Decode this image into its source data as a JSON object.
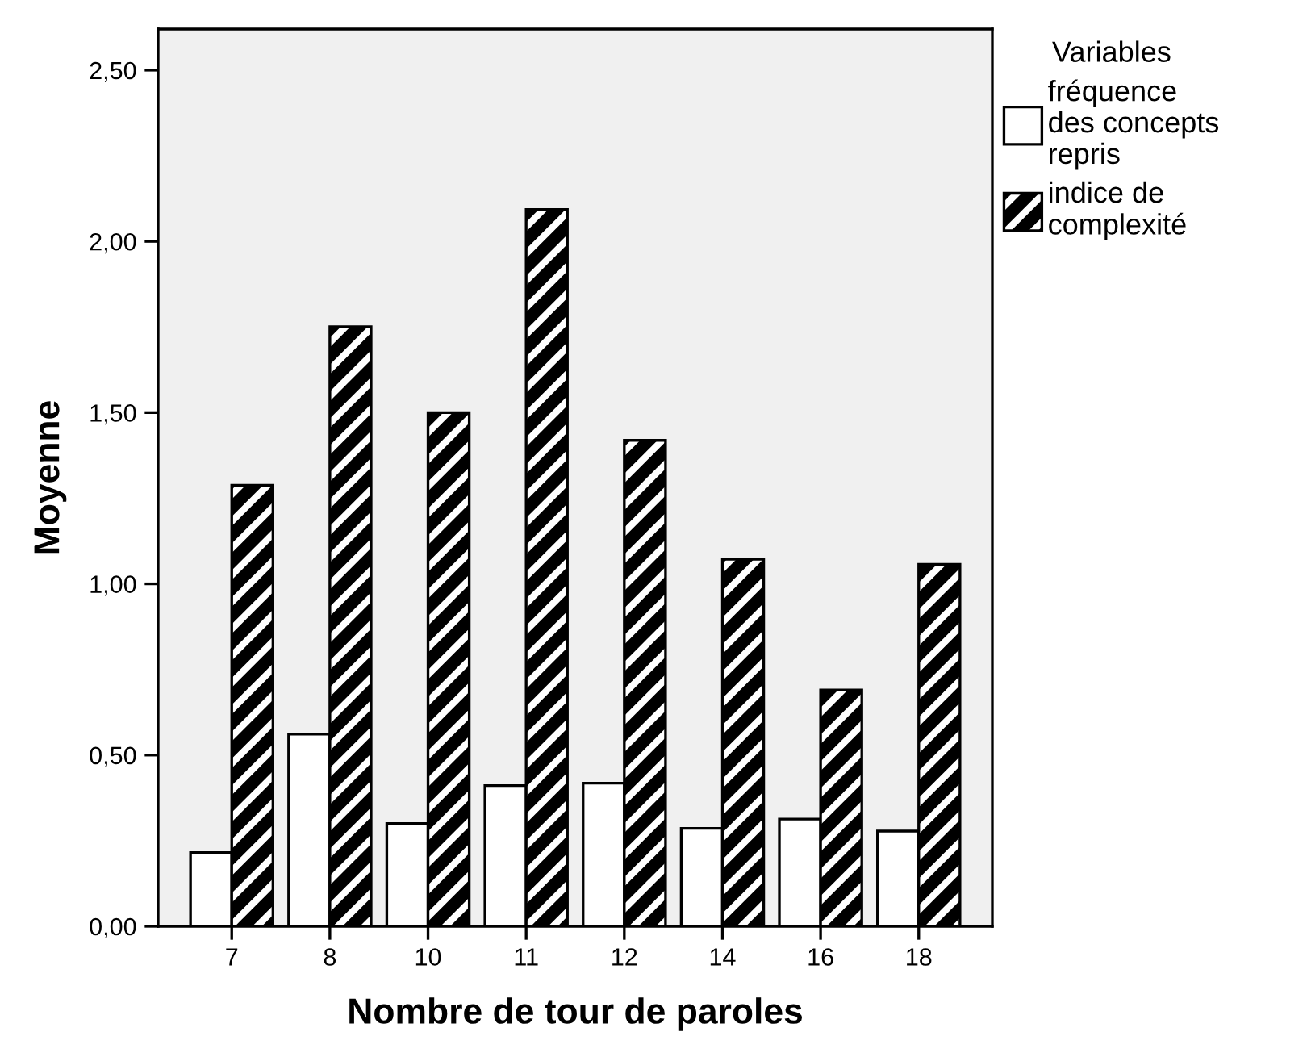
{
  "chart_data": {
    "type": "bar",
    "xlabel": "Nombre de tour de paroles",
    "ylabel": "Moyenne",
    "legend_title": "Variables",
    "categories": [
      "7",
      "8",
      "10",
      "11",
      "12",
      "14",
      "16",
      "18"
    ],
    "series": [
      {
        "name": "fréquence\ndes concepts\nrepris",
        "color": "#ffffff",
        "values": [
          0.215,
          0.561,
          0.3,
          0.411,
          0.418,
          0.286,
          0.313,
          0.278
        ]
      },
      {
        "name": "indice de\ncomplexité",
        "color": "#000000",
        "values": [
          1.288,
          1.751,
          1.5,
          2.093,
          1.419,
          1.072,
          0.69,
          1.057
        ]
      }
    ],
    "ylim": [
      0,
      2.62
    ],
    "yticks": [
      {
        "value": 0,
        "label": "0,00"
      },
      {
        "value": 0.5,
        "label": "0,50"
      },
      {
        "value": 1.0,
        "label": "1,00"
      },
      {
        "value": 1.5,
        "label": "1,50"
      },
      {
        "value": 2.0,
        "label": "2,00"
      },
      {
        "value": 2.5,
        "label": "2,50"
      }
    ],
    "grid": false,
    "legend": "top right"
  }
}
